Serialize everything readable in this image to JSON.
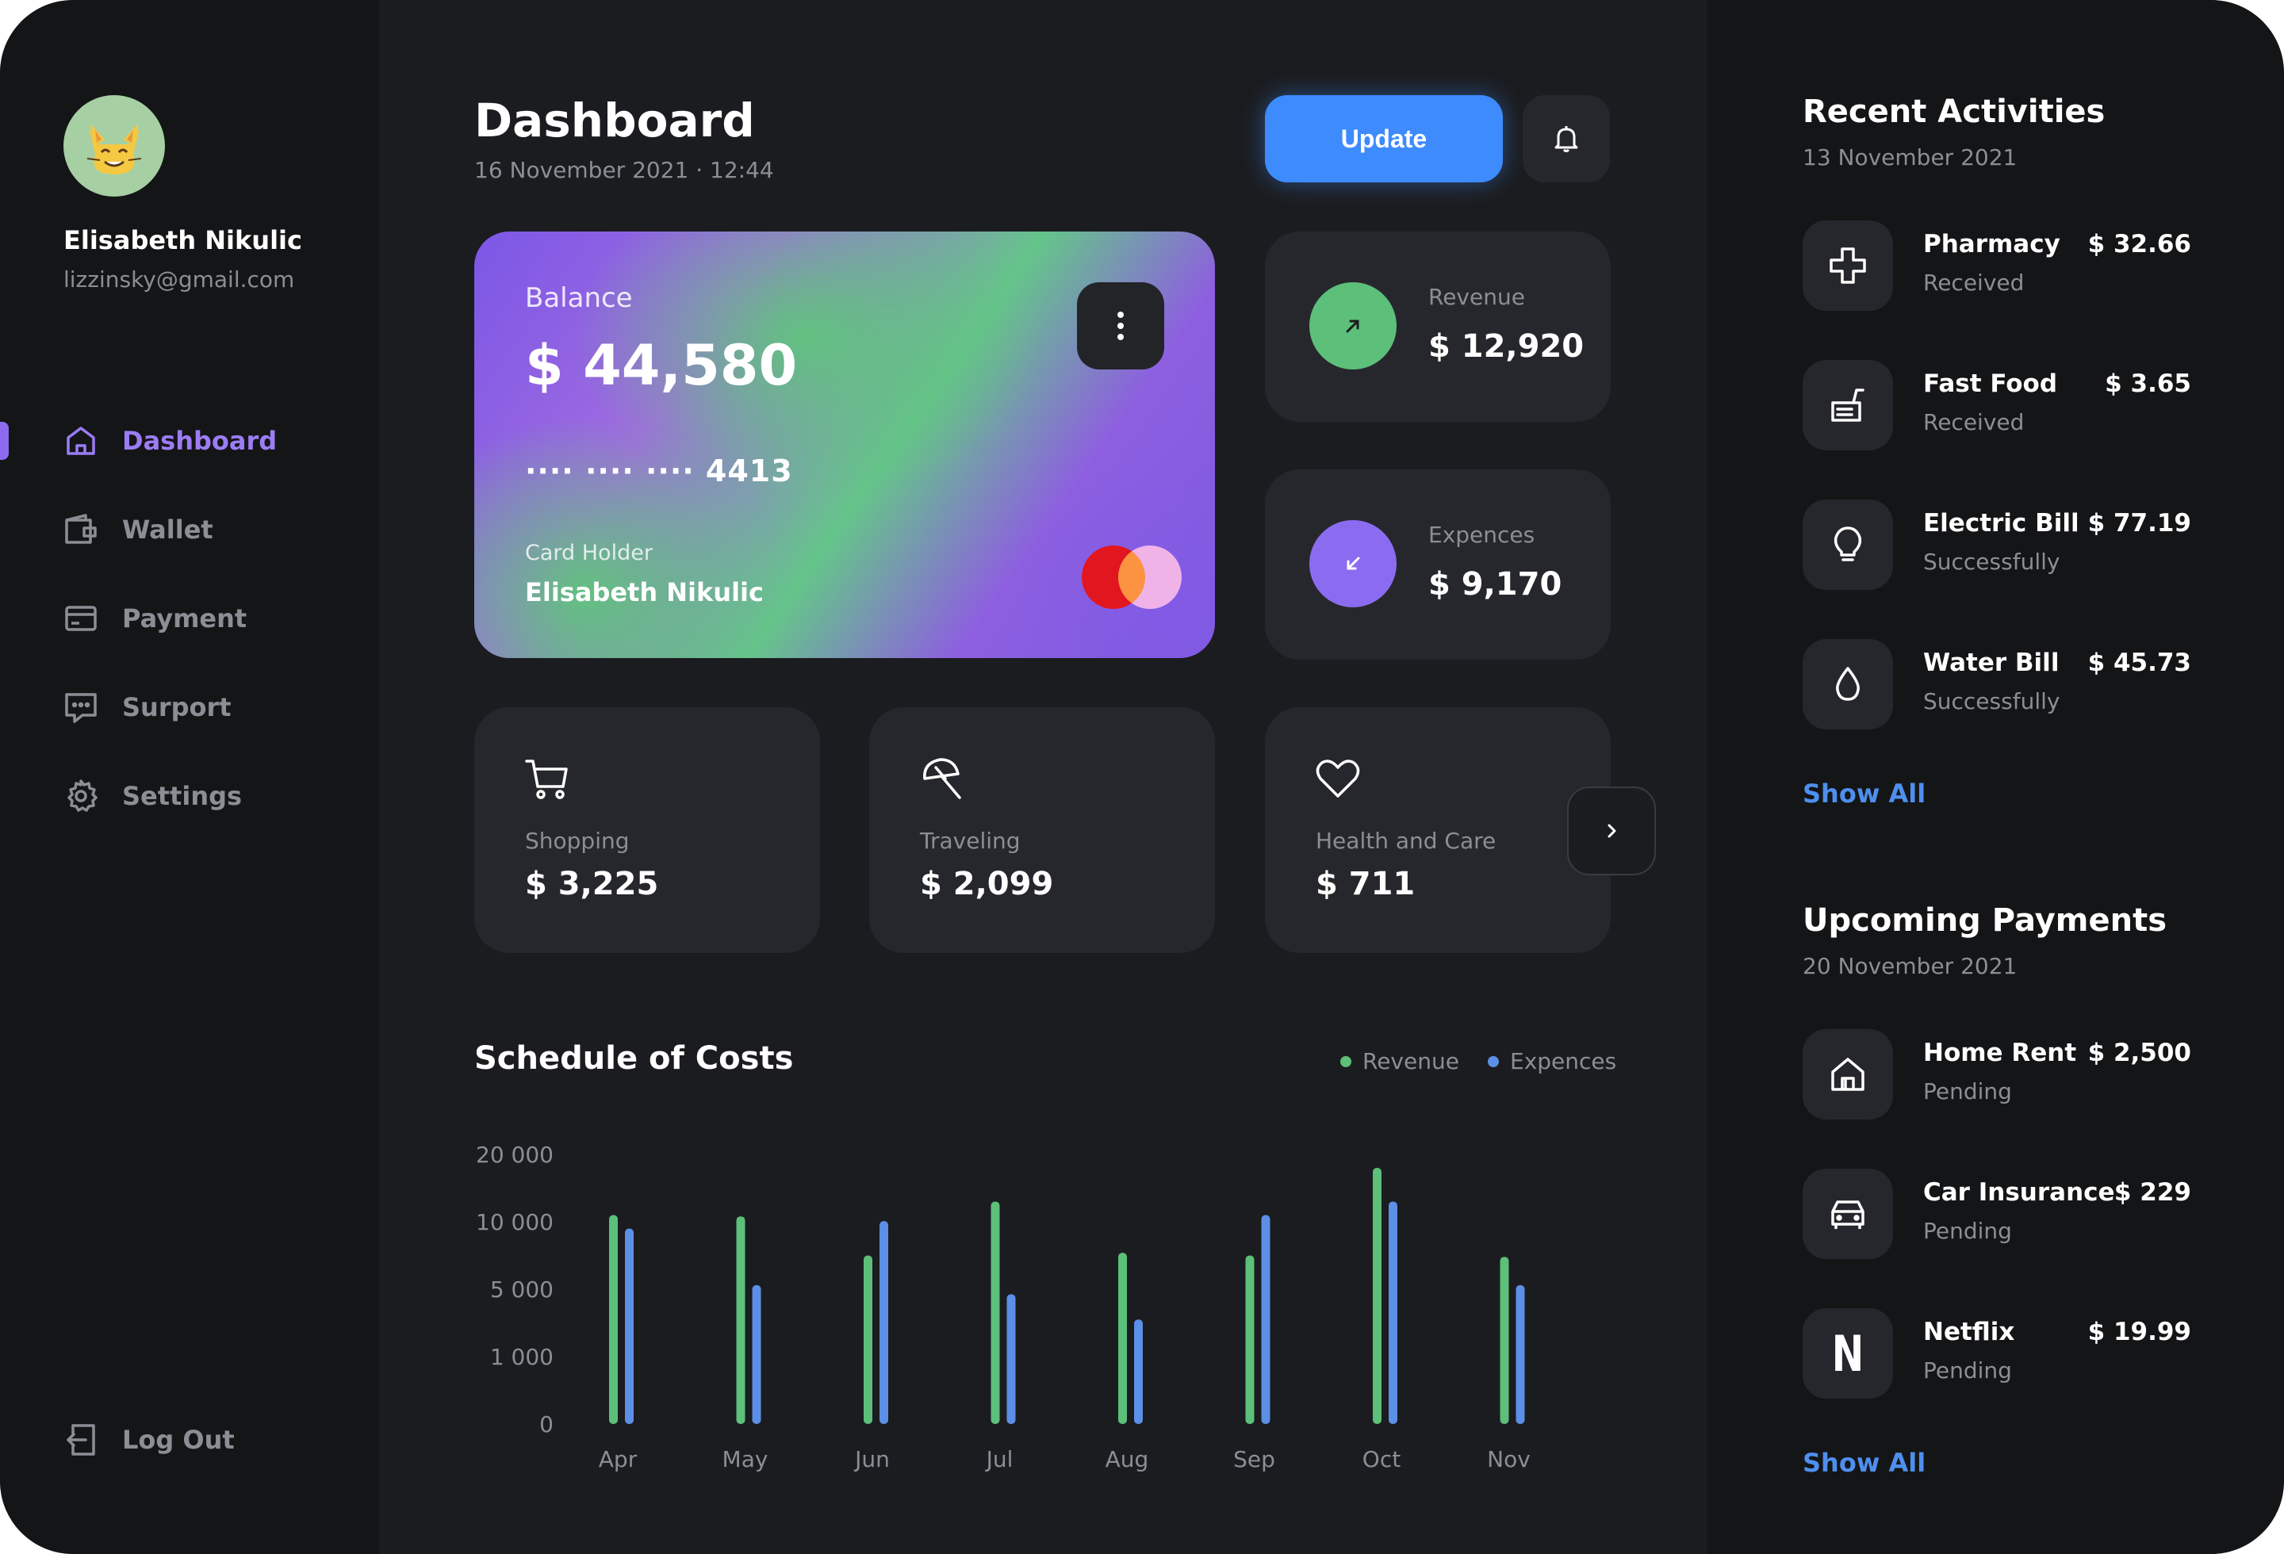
{
  "user": {
    "name": "Elisabeth Nikulic",
    "email": "lizzinsky@gmail.com",
    "avatar_icon": "cat-emoji-avatar"
  },
  "nav": {
    "items": [
      {
        "label": "Dashboard",
        "icon": "home-icon",
        "active": true
      },
      {
        "label": "Wallet",
        "icon": "wallet-icon"
      },
      {
        "label": "Payment",
        "icon": "credit-card-icon"
      },
      {
        "label": "Surport",
        "icon": "chat-icon"
      },
      {
        "label": "Settings",
        "icon": "gear-icon"
      }
    ],
    "logout": "Log Out"
  },
  "header": {
    "title": "Dashboard",
    "date": "16 November 2021 · 12:44",
    "update_label": "Update"
  },
  "balance_card": {
    "label": "Balance",
    "amount": "$ 44,580",
    "masked_number": "···· ···· ····",
    "last4": "4413",
    "holder_label": "Card Holder",
    "holder_name": "Elisabeth Nikulic"
  },
  "stats": {
    "revenue": {
      "label": "Revenue",
      "value": "$ 12,920"
    },
    "expences": {
      "label": "Expences",
      "value": "$ 9,170"
    }
  },
  "categories": [
    {
      "label": "Shopping",
      "value": "$ 3,225",
      "icon": "shopping-cart-icon"
    },
    {
      "label": "Traveling",
      "value": "$ 2,099",
      "icon": "umbrella-icon"
    },
    {
      "label": "Health and Care",
      "value": "$ 711",
      "icon": "heart-icon"
    }
  ],
  "colors": {
    "revenue": "#5cbf7a",
    "expences": "#5c8fe6",
    "accent": "#8b6cf0",
    "link": "#4e8fee"
  },
  "chart_data": {
    "type": "bar",
    "title": "Schedule of Costs",
    "categories": [
      "Apr",
      "May",
      "Jun",
      "Jul",
      "Aug",
      "Sep",
      "Oct",
      "Nov"
    ],
    "y_ticks": [
      "20 000",
      "10 000",
      "5 000",
      "1 000",
      "0"
    ],
    "legend_position": "top-right",
    "series": [
      {
        "name": "Revenue",
        "color": "#5cbf7a",
        "values": [
          11000,
          10800,
          7500,
          13000,
          7700,
          7500,
          18000,
          7400
        ]
      },
      {
        "name": "Expences",
        "color": "#5c8fe6",
        "values": [
          9500,
          5300,
          10100,
          4700,
          3200,
          11000,
          13000,
          5300
        ]
      }
    ]
  },
  "recent": {
    "title": "Recent Activities",
    "date": "13 November 2021",
    "items": [
      {
        "name": "Pharmacy",
        "status": "Received",
        "amount": "$ 32.66",
        "icon": "medical-cross-icon"
      },
      {
        "name": "Fast Food",
        "status": "Received",
        "amount": "$ 3.65",
        "icon": "fast-food-icon"
      },
      {
        "name": "Electric Bill",
        "status": "Successfully",
        "amount": "$ 77.19",
        "icon": "lightbulb-icon"
      },
      {
        "name": "Water Bill",
        "status": "Successfully",
        "amount": "$ 45.73",
        "icon": "water-drop-icon"
      }
    ],
    "show_all": "Show All"
  },
  "upcoming": {
    "title": "Upcoming Payments",
    "date": "20 November 2021",
    "items": [
      {
        "name": "Home Rent",
        "status": "Pending",
        "amount": "$ 2,500",
        "icon": "house-icon"
      },
      {
        "name": "Car Insurance",
        "status": "Pending",
        "amount": "$ 229",
        "icon": "car-icon"
      },
      {
        "name": "Netflix",
        "status": "Pending",
        "amount": "$ 19.99",
        "icon": "netflix-icon",
        "glyph": "N"
      }
    ],
    "show_all": "Show All"
  }
}
